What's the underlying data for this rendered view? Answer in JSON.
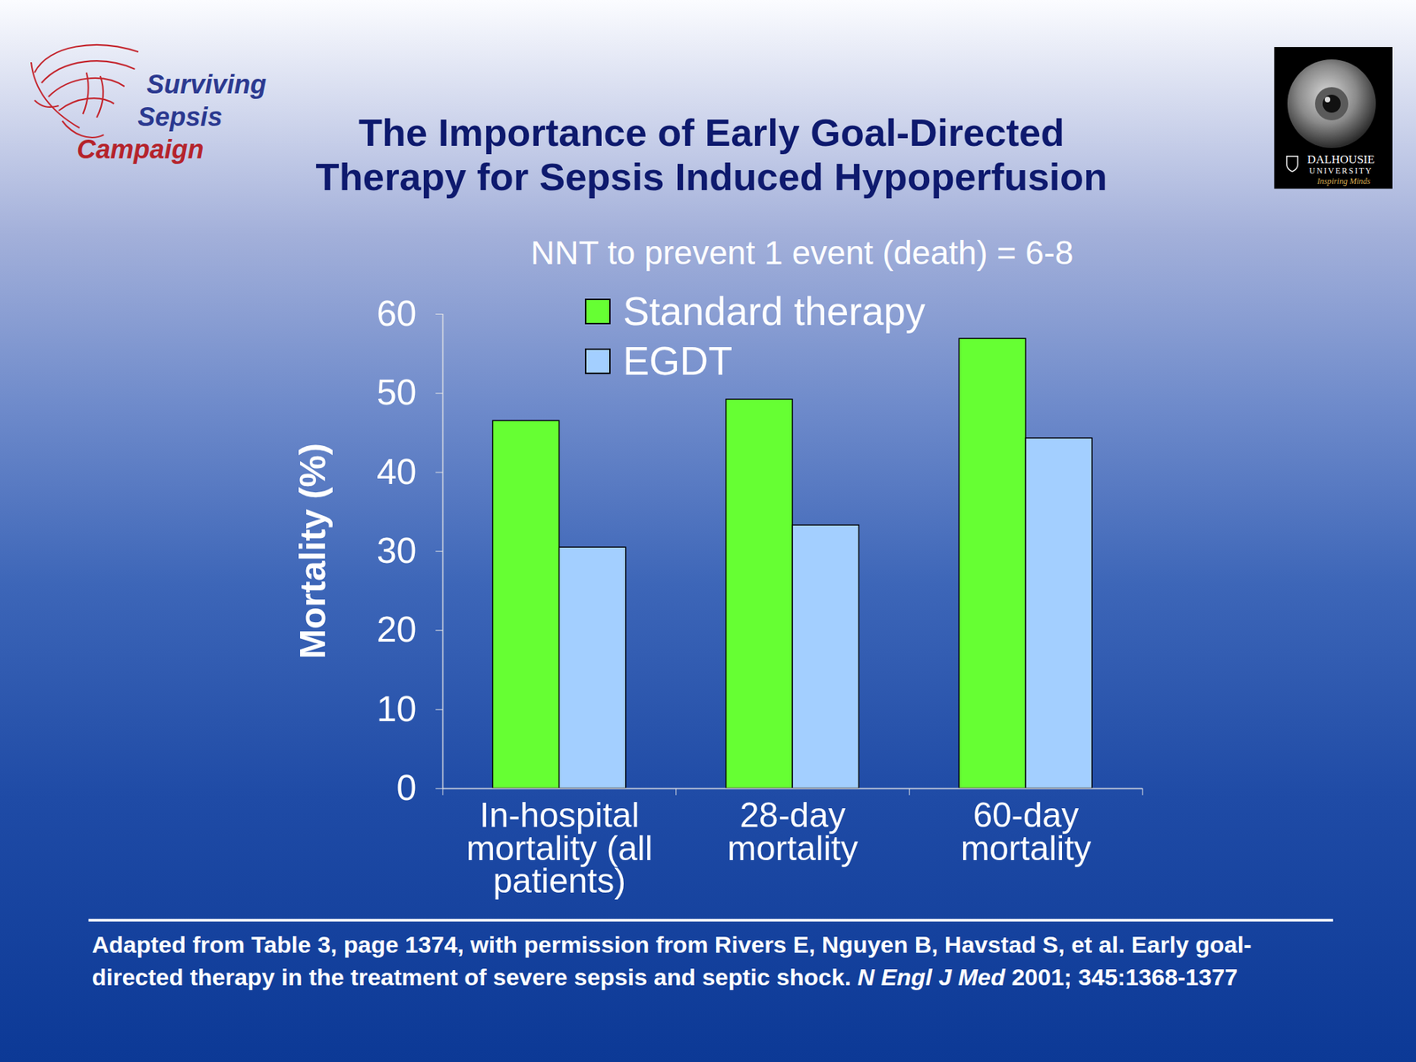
{
  "chart_data": {
    "type": "bar",
    "title": "The Importance of Early Goal-Directed Therapy for Sepsis Induced Hypoperfusion",
    "subtitle": "NNT to prevent 1 event (death) = 6-8",
    "ylabel": "Mortality (%)",
    "categories": [
      "In-hospital mortality (all patients)",
      "28-day mortality",
      "60-day mortality"
    ],
    "series": [
      {
        "name": "Standard therapy",
        "color": "#66ff33",
        "values": [
          46.5,
          49.2,
          56.9
        ]
      },
      {
        "name": "EGDT",
        "color": "#a3cfff",
        "values": [
          30.5,
          33.3,
          44.3
        ]
      }
    ],
    "ylim": [
      0,
      60
    ],
    "yticks": [
      0,
      10,
      20,
      30,
      40,
      50,
      60
    ],
    "grid": false,
    "legend": "top",
    "source": {
      "text": "Adapted from Table 3, page 1374, with permission from Rivers E, Nguyen B, Havstad S, et al. Early goal-directed therapy in the treatment of severe sepsis and septic shock.",
      "journal": "N Engl J Med",
      "citation": "2001; 345:1368-1377"
    },
    "logo_left": "Surviving Sepsis Campaign",
    "logo_right": {
      "name": "DALHOUSIE UNIVERSITY",
      "motto": "Inspiring Minds"
    }
  }
}
